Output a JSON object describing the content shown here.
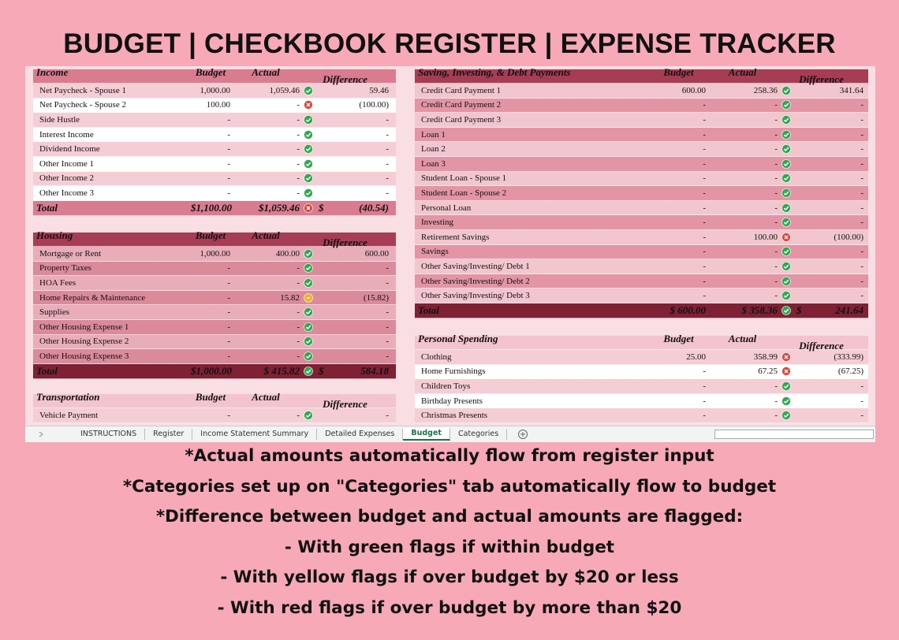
{
  "header": {
    "title": "BUDGET | CHECKBOOK REGISTER | EXPENSE TRACKER"
  },
  "sections": [
    {
      "headers": [
        "Income",
        "Budget",
        "Actual",
        "Difference"
      ],
      "rows": [
        [
          "Net Paycheck - Spouse 1",
          "1,000.00",
          "1,059.46",
          "green",
          "59.46"
        ],
        [
          "Net Paycheck - Spouse 2",
          "100.00",
          "-",
          "red",
          "(100.00)"
        ],
        [
          "Side Hustle",
          "-",
          "-",
          "green",
          "-"
        ],
        [
          "Interest Income",
          "-",
          "-",
          "green",
          "-"
        ],
        [
          "Dividend Income",
          "-",
          "-",
          "green",
          "-"
        ],
        [
          "Other Income 1",
          "-",
          "-",
          "green",
          "-"
        ],
        [
          "Other Income 2",
          "-",
          "-",
          "green",
          "-"
        ],
        [
          "Other Income 3",
          "-",
          "-",
          "green",
          "-"
        ]
      ],
      "total": {
        "label": "Total",
        "budget": "$1,100.00",
        "actual": "$1,059.46",
        "flag": "red",
        "currency": "$",
        "difference": "(40.54)"
      }
    },
    {
      "headers": [
        "Housing",
        "Budget",
        "Actual",
        "Difference"
      ],
      "rows": [
        [
          "Mortgage or Rent",
          "1,000.00",
          "400.00",
          "green",
          "600.00"
        ],
        [
          "Property Taxes",
          "-",
          "-",
          "green",
          "-"
        ],
        [
          "HOA Fees",
          "-",
          "-",
          "green",
          "-"
        ],
        [
          "Home Repairs & Maintenance",
          "-",
          "15.82",
          "yellow",
          "(15.82)"
        ],
        [
          "Supplies",
          "-",
          "-",
          "green",
          "-"
        ],
        [
          "Other Housing Expense 1",
          "-",
          "-",
          "green",
          "-"
        ],
        [
          "Other Housing Expense 2",
          "-",
          "-",
          "green",
          "-"
        ],
        [
          "Other Housing Expense 3",
          "-",
          "-",
          "green",
          "-"
        ]
      ],
      "total": {
        "label": "Total",
        "budget": "$1,000.00",
        "actual": "$ 415.82",
        "flag": "green",
        "currency": "$",
        "difference": "584.18"
      }
    },
    {
      "headers": [
        "Transportation",
        "Budget",
        "Actual",
        "Difference"
      ],
      "rows": [
        [
          "Vehicle Payment",
          "-",
          "-",
          "green",
          "-"
        ]
      ]
    },
    {
      "headers": [
        "Saving, Investing, & Debt Payments",
        "Budget",
        "Actual",
        "Difference"
      ],
      "rows": [
        [
          "Credit Card Payment 1",
          "600.00",
          "258.36",
          "green",
          "341.64"
        ],
        [
          "Credit Card Payment 2",
          "-",
          "-",
          "green",
          "-"
        ],
        [
          "Credit Card Payment 3",
          "-",
          "-",
          "green",
          "-"
        ],
        [
          "Loan 1",
          "-",
          "-",
          "green",
          "-"
        ],
        [
          "Loan 2",
          "-",
          "-",
          "green",
          "-"
        ],
        [
          "Loan 3",
          "-",
          "-",
          "green",
          "-"
        ],
        [
          "Student Loan - Spouse 1",
          "-",
          "-",
          "green",
          "-"
        ],
        [
          "Student Loan - Spouse 2",
          "-",
          "-",
          "green",
          "-"
        ],
        [
          "Personal Loan",
          "-",
          "-",
          "green",
          "-"
        ],
        [
          "Investing",
          "-",
          "-",
          "green",
          "-"
        ],
        [
          "Retirement Savings",
          "-",
          "100.00",
          "red",
          "(100.00)"
        ],
        [
          "Savings",
          "-",
          "-",
          "green",
          "-"
        ],
        [
          "Other Saving/Investing/ Debt 1",
          "-",
          "-",
          "green",
          "-"
        ],
        [
          "Other Saving/Investing/ Debt 2",
          "-",
          "-",
          "green",
          "-"
        ],
        [
          "Other Saving/Investing/ Debt 3",
          "-",
          "-",
          "green",
          "-"
        ]
      ],
      "total": {
        "label": "Total",
        "budget": "$ 600.00",
        "actual": "$ 358.36",
        "flag": "green",
        "currency": "$",
        "difference": "241.64"
      }
    },
    {
      "headers": [
        "Personal Spending",
        "Budget",
        "Actual",
        "Difference"
      ],
      "rows": [
        [
          "Clothing",
          "25.00",
          "358.99",
          "red",
          "(333.99)"
        ],
        [
          "Home Furnishings",
          "-",
          "67.25",
          "red",
          "(67.25)"
        ],
        [
          "Children Toys",
          "-",
          "-",
          "green",
          "-"
        ],
        [
          "Birthday Presents",
          "-",
          "-",
          "green",
          "-"
        ],
        [
          "Christmas Presents",
          "-",
          "-",
          "green",
          "-"
        ]
      ]
    }
  ],
  "tabs": {
    "items": [
      "INSTRUCTIONS",
      "Register",
      "Income Statement Summary",
      "Detailed Expenses",
      "Budget",
      "Categories"
    ],
    "active": 4
  },
  "notes": [
    "*Actual amounts automatically flow from register input",
    "*Categories set up on \"Categories\" tab automatically flow to budget",
    "*Difference between budget and actual amounts are flagged:",
    "- With green flags if within budget",
    "- With yellow flags if over budget by $20 or less",
    "- With red flags if over budget by more than $20"
  ]
}
